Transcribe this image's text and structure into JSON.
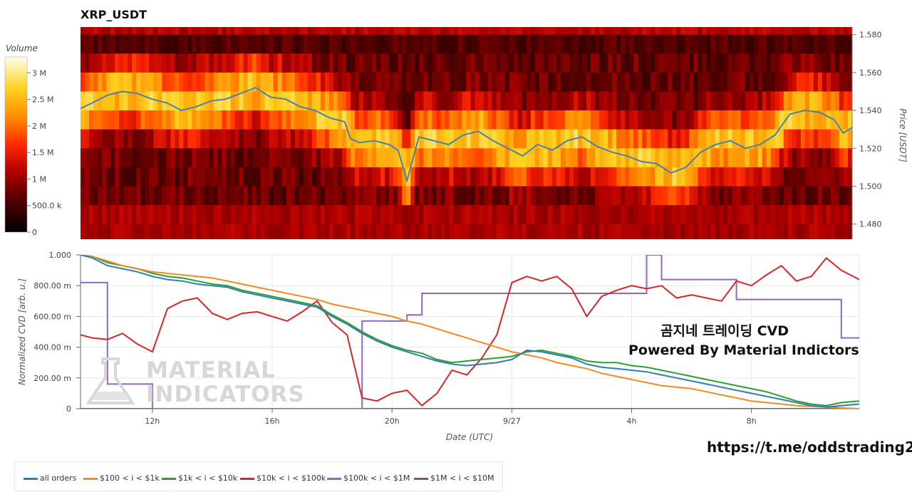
{
  "header": {
    "title": "XRP_USDT"
  },
  "colorbar": {
    "title": "Volume",
    "ticks": [
      {
        "value": 0,
        "label": "0"
      },
      {
        "value": 500000,
        "label": "500.0 k"
      },
      {
        "value": 1000000,
        "label": "1 M"
      },
      {
        "value": 1500000,
        "label": "1.5 M"
      },
      {
        "value": 2000000,
        "label": "2 M"
      },
      {
        "value": 2500000,
        "label": "2.5 M"
      },
      {
        "value": 3000000,
        "label": "3 M"
      }
    ],
    "range": [
      0,
      3300000
    ]
  },
  "annotations": {
    "line1": "곰지네 트레이딩 CVD",
    "line2": "Powered By Material Indictors",
    "url": "https://t.me/oddstrading2",
    "watermark_line1": "MATERIAL",
    "watermark_line2": "INDICATORS"
  },
  "chart_data": [
    {
      "type": "heatmap",
      "title": "XRP_USDT",
      "xlabel": "",
      "ylabel": "Price [USDT]",
      "y_ticks": [
        "1.480",
        "1.500",
        "1.520",
        "1.540",
        "1.560",
        "1.580"
      ],
      "ylim": [
        1.472,
        1.584
      ],
      "x_range_hours": [
        9.6,
        35.6
      ],
      "price_bands": [
        1.58,
        1.57,
        1.56,
        1.55,
        1.54,
        1.53,
        1.52,
        1.51,
        1.5,
        1.49,
        1.48,
        1.47
      ],
      "price_line": {
        "color": "#4a7fb0",
        "x_hours": [
          9.6,
          10.0,
          10.5,
          11.0,
          11.5,
          12.0,
          12.5,
          13.0,
          13.5,
          14.0,
          14.5,
          15.0,
          15.5,
          16.0,
          16.5,
          17.0,
          17.5,
          18.0,
          18.5,
          18.7,
          19.0,
          19.5,
          20.0,
          20.3,
          20.6,
          21.0,
          21.5,
          22.0,
          22.5,
          23.0,
          23.5,
          24.0,
          24.5,
          25.0,
          25.5,
          26.0,
          26.5,
          27.0,
          27.5,
          28.0,
          28.5,
          29.0,
          29.5,
          30.0,
          30.5,
          31.0,
          31.5,
          32.0,
          32.5,
          33.0,
          33.5,
          34.0,
          34.5,
          35.0,
          35.3,
          35.6
        ],
        "values": [
          1.541,
          1.544,
          1.548,
          1.55,
          1.549,
          1.546,
          1.544,
          1.54,
          1.542,
          1.545,
          1.546,
          1.549,
          1.552,
          1.547,
          1.546,
          1.542,
          1.54,
          1.536,
          1.534,
          1.525,
          1.523,
          1.524,
          1.522,
          1.519,
          1.503,
          1.526,
          1.524,
          1.522,
          1.527,
          1.529,
          1.524,
          1.52,
          1.516,
          1.522,
          1.519,
          1.524,
          1.526,
          1.521,
          1.518,
          1.516,
          1.513,
          1.512,
          1.507,
          1.51,
          1.518,
          1.522,
          1.524,
          1.52,
          1.522,
          1.527,
          1.538,
          1.54,
          1.539,
          1.535,
          1.528,
          1.531
        ]
      }
    },
    {
      "type": "line",
      "xlabel": "Date (UTC)",
      "ylabel": "Normalized CVD [arb. u.]",
      "x_ticks": [
        {
          "hour": 12,
          "label": "12h"
        },
        {
          "hour": 16,
          "label": "16h"
        },
        {
          "hour": 20,
          "label": "20h"
        },
        {
          "hour": 24,
          "label": "9/27"
        },
        {
          "hour": 28,
          "label": "4h"
        },
        {
          "hour": 32,
          "label": "8h"
        }
      ],
      "xlim": [
        9.6,
        35.6
      ],
      "y_ticks": [
        {
          "value": 0,
          "label": "0"
        },
        {
          "value": 0.2,
          "label": "200.00 m"
        },
        {
          "value": 0.4,
          "label": "400.00 m"
        },
        {
          "value": 0.6,
          "label": "600.00 m"
        },
        {
          "value": 0.8,
          "label": "800.00 m"
        },
        {
          "value": 1.0,
          "label": "1.000"
        }
      ],
      "ylim": [
        0,
        1.0
      ],
      "x": [
        9.6,
        10.0,
        10.5,
        11.0,
        11.5,
        12.0,
        12.5,
        13.0,
        13.5,
        14.0,
        14.5,
        15.0,
        15.5,
        16.0,
        16.5,
        17.0,
        17.5,
        18.0,
        18.5,
        19.0,
        19.5,
        20.0,
        20.5,
        21.0,
        21.5,
        22.0,
        22.5,
        23.0,
        23.5,
        24.0,
        24.5,
        25.0,
        25.5,
        26.0,
        26.5,
        27.0,
        27.5,
        28.0,
        28.5,
        29.0,
        29.5,
        30.0,
        30.5,
        31.0,
        31.5,
        32.0,
        32.5,
        33.0,
        33.5,
        34.0,
        34.5,
        35.0,
        35.6
      ],
      "series": [
        {
          "name": "all orders",
          "color": "#2e7eb5",
          "values": [
            1.0,
            0.98,
            0.93,
            0.91,
            0.89,
            0.86,
            0.84,
            0.83,
            0.81,
            0.8,
            0.79,
            0.76,
            0.74,
            0.72,
            0.7,
            0.68,
            0.66,
            0.6,
            0.55,
            0.49,
            0.44,
            0.4,
            0.37,
            0.34,
            0.31,
            0.29,
            0.28,
            0.29,
            0.3,
            0.32,
            0.38,
            0.37,
            0.35,
            0.33,
            0.29,
            0.27,
            0.26,
            0.25,
            0.24,
            0.22,
            0.2,
            0.18,
            0.16,
            0.14,
            0.12,
            0.1,
            0.08,
            0.06,
            0.04,
            0.02,
            0.01,
            0.02,
            0.03
          ]
        },
        {
          "name": "$100 < i < $1k",
          "color": "#f28a1e",
          "values": [
            1.0,
            0.99,
            0.96,
            0.93,
            0.91,
            0.89,
            0.88,
            0.87,
            0.86,
            0.85,
            0.83,
            0.81,
            0.79,
            0.77,
            0.75,
            0.73,
            0.71,
            0.68,
            0.66,
            0.64,
            0.62,
            0.6,
            0.57,
            0.55,
            0.52,
            0.49,
            0.46,
            0.43,
            0.4,
            0.37,
            0.35,
            0.33,
            0.3,
            0.28,
            0.26,
            0.23,
            0.21,
            0.19,
            0.17,
            0.15,
            0.14,
            0.13,
            0.11,
            0.09,
            0.07,
            0.05,
            0.04,
            0.03,
            0.02,
            0.015,
            0.01,
            0.005,
            0.0
          ]
        },
        {
          "name": "$1k < i < $10k",
          "color": "#2ca02c",
          "values": [
            1.0,
            0.99,
            0.95,
            0.93,
            0.91,
            0.88,
            0.86,
            0.85,
            0.83,
            0.81,
            0.8,
            0.77,
            0.75,
            0.73,
            0.71,
            0.69,
            0.67,
            0.61,
            0.56,
            0.5,
            0.45,
            0.41,
            0.38,
            0.36,
            0.32,
            0.3,
            0.31,
            0.32,
            0.33,
            0.34,
            0.37,
            0.38,
            0.36,
            0.34,
            0.31,
            0.3,
            0.3,
            0.28,
            0.27,
            0.25,
            0.23,
            0.21,
            0.19,
            0.17,
            0.15,
            0.13,
            0.11,
            0.08,
            0.05,
            0.03,
            0.02,
            0.04,
            0.05
          ]
        },
        {
          "name": "$10k < i < $100k",
          "color": "#d62728",
          "values": [
            0.48,
            0.46,
            0.45,
            0.49,
            0.42,
            0.37,
            0.65,
            0.7,
            0.72,
            0.62,
            0.58,
            0.62,
            0.63,
            0.6,
            0.57,
            0.63,
            0.7,
            0.56,
            0.48,
            0.07,
            0.05,
            0.1,
            0.12,
            0.02,
            0.1,
            0.25,
            0.22,
            0.33,
            0.48,
            0.82,
            0.86,
            0.83,
            0.86,
            0.78,
            0.6,
            0.73,
            0.77,
            0.8,
            0.78,
            0.8,
            0.72,
            0.74,
            0.72,
            0.7,
            0.83,
            0.8,
            0.87,
            0.93,
            0.83,
            0.86,
            0.98,
            0.9,
            0.84
          ]
        },
        {
          "name": "$100k < i < $1M",
          "color": "#9467bd",
          "values": [
            0.82,
            0.82,
            0.16,
            0.16,
            0.16,
            0.0,
            0.0,
            0.0,
            0.0,
            0.0,
            0.0,
            0.0,
            0.0,
            0.0,
            0.0,
            0.0,
            0.0,
            0.0,
            0.0,
            0.57,
            0.57,
            0.57,
            0.61,
            0.75,
            0.75,
            0.75,
            0.75,
            0.75,
            0.75,
            0.75,
            0.75,
            0.75,
            0.75,
            0.75,
            0.75,
            0.75,
            0.75,
            0.75,
            1.0,
            0.84,
            0.84,
            0.84,
            0.84,
            0.84,
            0.71,
            0.71,
            0.71,
            0.71,
            0.71,
            0.71,
            0.71,
            0.46,
            0.46
          ]
        },
        {
          "name": "$1M < i < $10M",
          "color": "#8c564b",
          "values": [
            0.0,
            0.0,
            0.0,
            0.0,
            0.0,
            0.0,
            0.0,
            0.0,
            0.0,
            0.0,
            0.0,
            0.0,
            0.0,
            0.0,
            0.0,
            0.0,
            0.0,
            0.0,
            0.0,
            0.0,
            0.0,
            0.0,
            0.0,
            0.0,
            0.0,
            0.0,
            0.0,
            0.0,
            0.0,
            0.0,
            0.0,
            0.0,
            0.0,
            0.0,
            0.0,
            0.0,
            0.0,
            0.0,
            0.0,
            0.0,
            0.0,
            0.0,
            0.0,
            0.0,
            0.0,
            0.0,
            0.0,
            0.0,
            0.0,
            0.0,
            0.0,
            0.0,
            0.0
          ]
        }
      ],
      "legend": "bottom-left"
    }
  ]
}
